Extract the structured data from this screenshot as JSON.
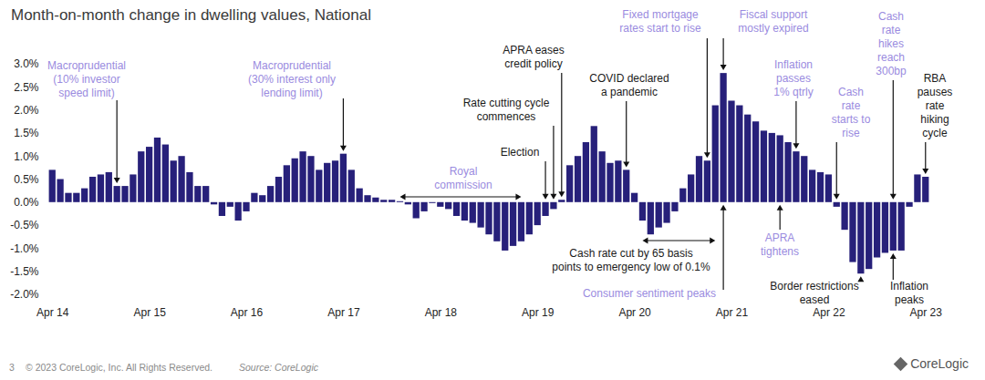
{
  "chart_data": {
    "type": "bar",
    "title": "Month-on-month change in dwelling values, National",
    "categories": [
      "Apr 14",
      null,
      null,
      null,
      null,
      null,
      null,
      null,
      null,
      null,
      null,
      null,
      "Apr 15",
      null,
      null,
      null,
      null,
      null,
      null,
      null,
      null,
      null,
      null,
      null,
      "Apr 16",
      null,
      null,
      null,
      null,
      null,
      null,
      null,
      null,
      null,
      null,
      null,
      "Apr 17",
      null,
      null,
      null,
      null,
      null,
      null,
      null,
      null,
      null,
      null,
      null,
      "Apr 18",
      null,
      null,
      null,
      null,
      null,
      null,
      null,
      null,
      null,
      null,
      null,
      "Apr 19",
      null,
      null,
      null,
      null,
      null,
      null,
      null,
      null,
      null,
      null,
      null,
      "Apr 20",
      null,
      null,
      null,
      null,
      null,
      null,
      null,
      null,
      null,
      null,
      null,
      "Apr 21",
      null,
      null,
      null,
      null,
      null,
      null,
      null,
      null,
      null,
      null,
      null,
      "Apr 22",
      null,
      null,
      null,
      null,
      null,
      null,
      null,
      null,
      null,
      null,
      null,
      "Apr 23"
    ],
    "values": [
      0.7,
      0.5,
      0.2,
      0.2,
      0.3,
      0.55,
      0.6,
      0.65,
      0.35,
      0.35,
      0.6,
      1.1,
      1.2,
      1.4,
      1.25,
      0.9,
      1.0,
      0.65,
      0.35,
      0.35,
      -0.05,
      -0.3,
      -0.1,
      -0.4,
      -0.2,
      0.2,
      0.15,
      0.35,
      0.55,
      0.8,
      0.95,
      1.1,
      1.0,
      0.7,
      0.85,
      0.9,
      1.05,
      0.7,
      0.3,
      0.15,
      0.1,
      0.05,
      0.05,
      0.02,
      -0.05,
      -0.35,
      -0.2,
      -0.02,
      -0.1,
      -0.15,
      -0.3,
      -0.4,
      -0.45,
      -0.55,
      -0.7,
      -0.85,
      -1.05,
      -0.95,
      -0.85,
      -0.7,
      -0.5,
      -0.3,
      -0.15,
      0.05,
      0.8,
      1.0,
      1.3,
      1.65,
      1.1,
      0.85,
      0.9,
      0.7,
      0.2,
      -0.4,
      -0.7,
      -0.55,
      -0.45,
      -0.2,
      0.3,
      0.6,
      1.0,
      0.9,
      2.1,
      2.8,
      2.2,
      2.1,
      1.9,
      1.75,
      1.55,
      1.5,
      1.45,
      1.3,
      1.1,
      1.0,
      0.7,
      0.65,
      0.6,
      -0.1,
      -0.6,
      -1.3,
      -1.55,
      -1.45,
      -1.2,
      -1.1,
      -1.05,
      -1.05,
      -0.1,
      0.6,
      0.55
    ],
    "color": "#27207a",
    "ylim": [
      -2,
      3
    ],
    "yticks": [
      {
        "value": -2,
        "label": "-2.0%"
      },
      {
        "value": -1.5,
        "label": "-1.5%"
      },
      {
        "value": -1,
        "label": "-1.0%"
      },
      {
        "value": -0.5,
        "label": "-0.5%"
      },
      {
        "value": 0,
        "label": "0.0%"
      },
      {
        "value": 0.5,
        "label": "0.5%"
      },
      {
        "value": 1,
        "label": "1.0%"
      },
      {
        "value": 1.5,
        "label": "1.5%"
      },
      {
        "value": 2,
        "label": "2.0%"
      },
      {
        "value": 2.5,
        "label": "2.5%"
      },
      {
        "value": 3,
        "label": "3.0%"
      }
    ],
    "grid": false,
    "annotations": [
      {
        "text": [
          "Macroprudential",
          "(10% investor",
          "speed limit)"
        ],
        "color": "#9a8be0"
      },
      {
        "text": [
          "Macroprudential",
          "(30% interest only",
          "lending limit)"
        ],
        "color": "#9a8be0"
      },
      {
        "text": [
          "Royal",
          "commission"
        ],
        "color": "#9a8be0"
      },
      {
        "text": [
          "APRA eases",
          "credit policy"
        ],
        "color": "#1a1a1a"
      },
      {
        "text": [
          "Rate cutting cycle",
          "commences"
        ],
        "color": "#1a1a1a"
      },
      {
        "text": [
          "Election"
        ],
        "color": "#1a1a1a"
      },
      {
        "text": [
          "COVID declared",
          "a pandemic"
        ],
        "color": "#1a1a1a"
      },
      {
        "text": [
          "Fixed mortgage",
          "rates start to rise"
        ],
        "color": "#9a8be0"
      },
      {
        "text": [
          "Fiscal support",
          "mostly expired"
        ],
        "color": "#9a8be0"
      },
      {
        "text": [
          "Inflation",
          "passes",
          "1% qtrly"
        ],
        "color": "#9a8be0"
      },
      {
        "text": [
          "Cash",
          "rate",
          "starts to",
          "rise"
        ],
        "color": "#9a8be0"
      },
      {
        "text": [
          "Cash",
          "rate",
          "hikes",
          "reach",
          "300bp"
        ],
        "color": "#9a8be0"
      },
      {
        "text": [
          "RBA",
          "pauses",
          "rate",
          "hiking",
          "cycle"
        ],
        "color": "#1a1a1a"
      },
      {
        "text": [
          "Cash rate cut by 65 basis",
          "points to emergency low of 0.1%"
        ],
        "color": "#1a1a1a"
      },
      {
        "text": [
          "Consumer sentiment peaks"
        ],
        "color": "#9a8be0"
      },
      {
        "text": [
          "APRA",
          "tightens"
        ],
        "color": "#9a8be0"
      },
      {
        "text": [
          "Border restrictions",
          "eased"
        ],
        "color": "#1a1a1a"
      },
      {
        "text": [
          "Inflation",
          "peaks"
        ],
        "color": "#1a1a1a"
      }
    ],
    "page_number": "3",
    "copyright": "© 2023 CoreLogic, Inc. All Rights Reserved.",
    "source": "Source: CoreLogic",
    "logo": "CoreLogic"
  }
}
